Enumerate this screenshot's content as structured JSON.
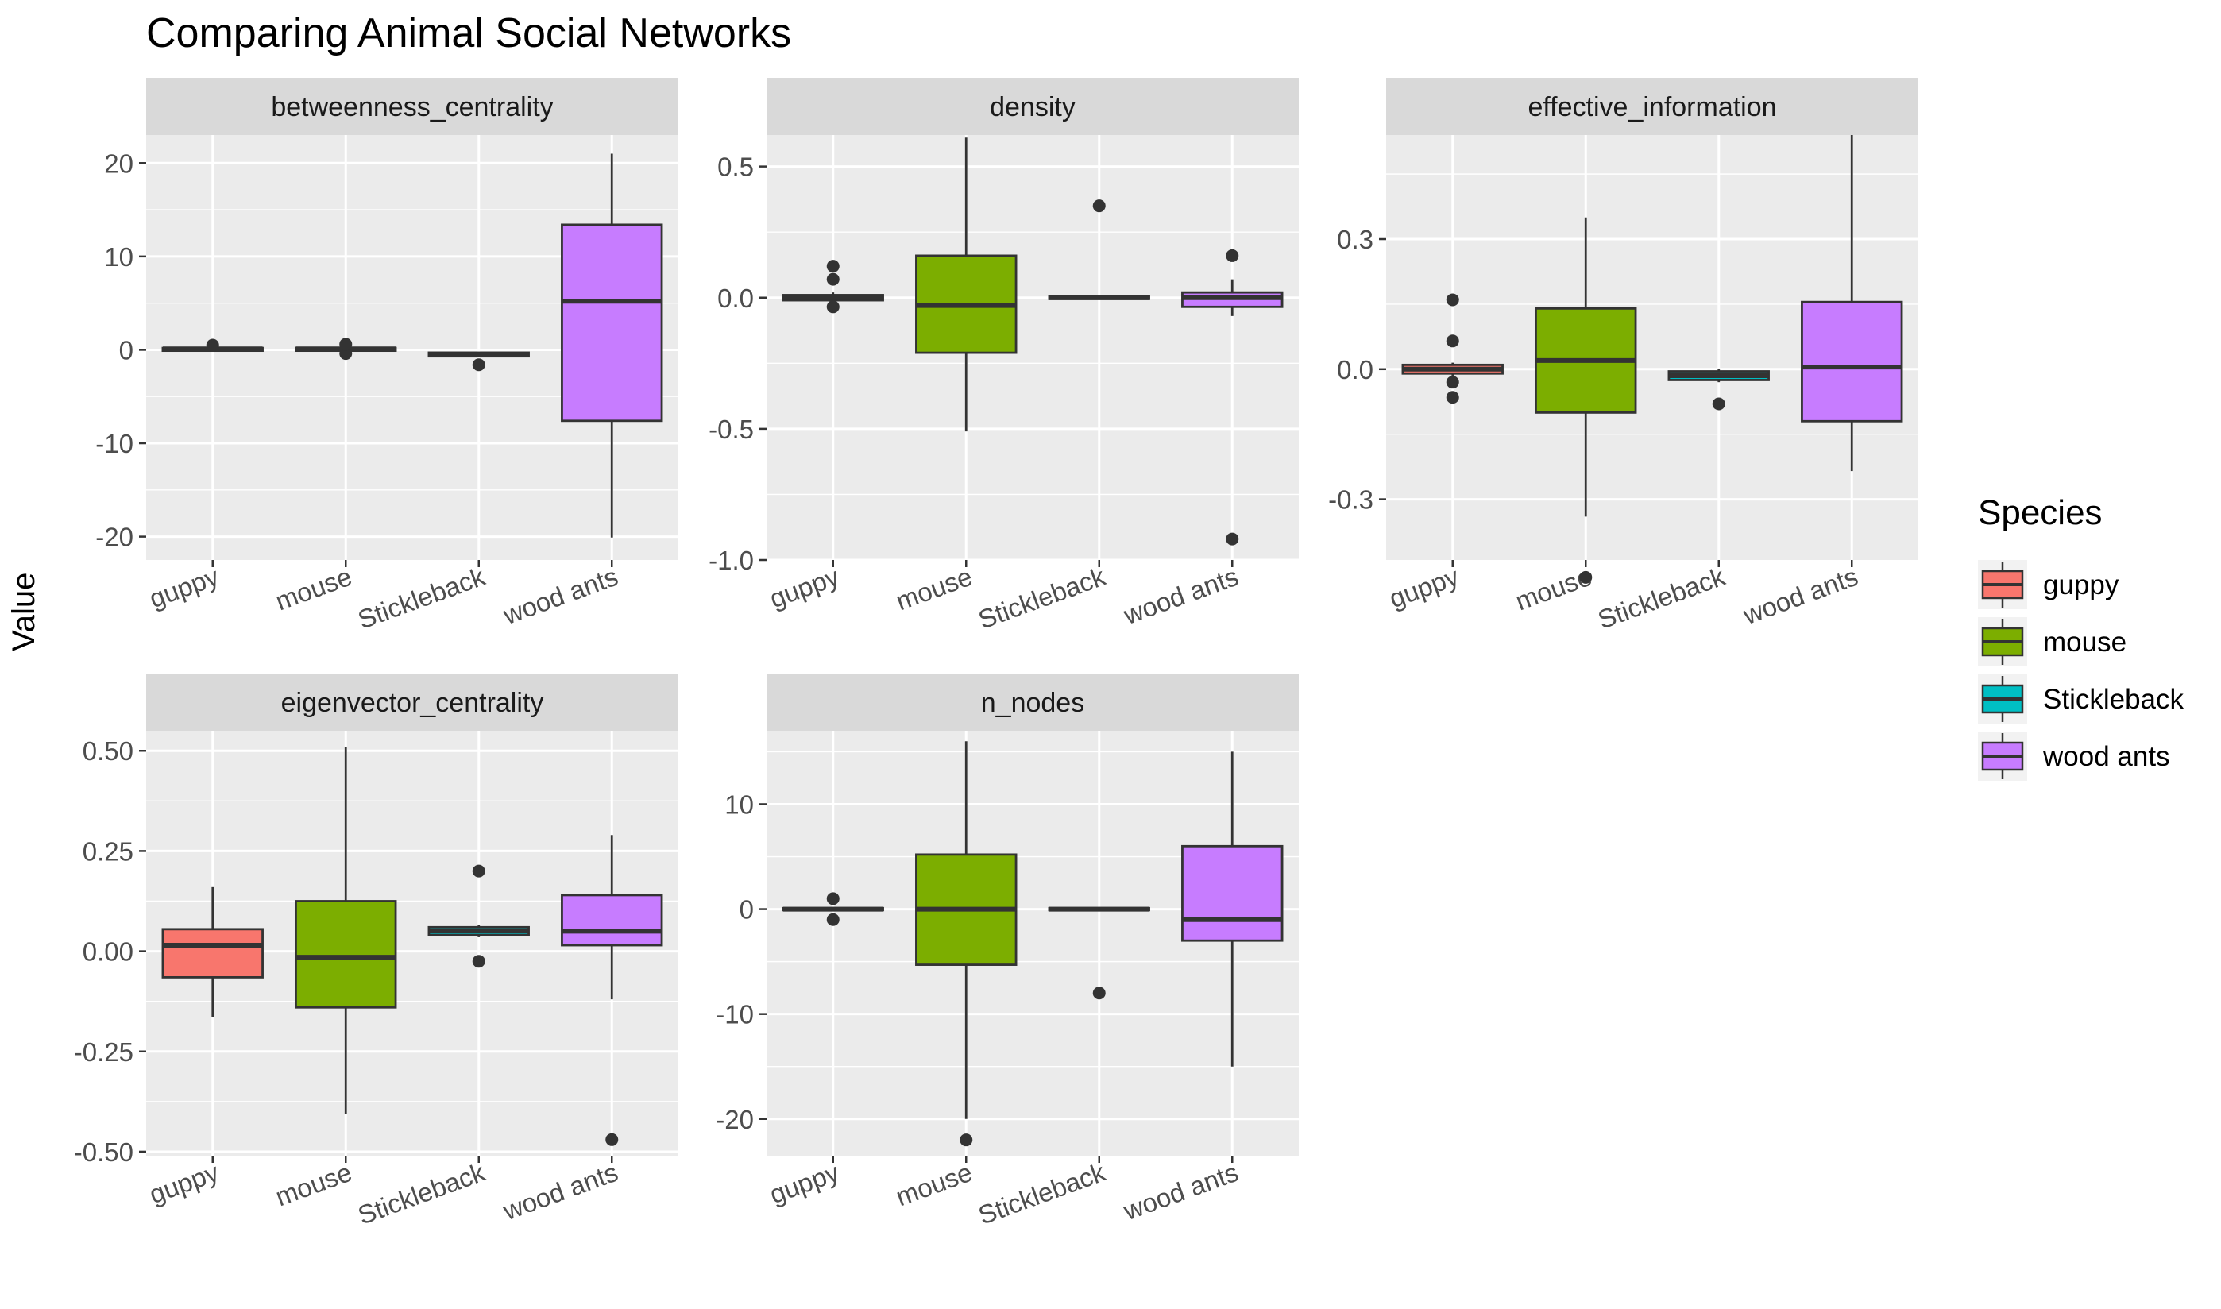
{
  "chart_data": {
    "type": "boxplot",
    "title": "Comparing Animal Social Networks",
    "ylabel": "Value",
    "categories": [
      "guppy",
      "mouse",
      "Stickleback",
      "wood ants"
    ],
    "legend": {
      "title": "Species",
      "position": "right",
      "entries": [
        {
          "label": "guppy",
          "color": "#F8766D"
        },
        {
          "label": "mouse",
          "color": "#7CAE00"
        },
        {
          "label": "Stickleback",
          "color": "#00BFC4"
        },
        {
          "label": "wood ants",
          "color": "#C77CFF"
        }
      ]
    },
    "grid": true,
    "facets": [
      {
        "name": "betweenness_centrality",
        "ylim": [
          -22.5,
          23
        ],
        "yticks": [
          -20,
          -10,
          0,
          10,
          20
        ],
        "yticklabels": [
          "-20",
          "-10",
          "0",
          "10",
          "20"
        ],
        "boxes": [
          {
            "species": "guppy",
            "q1": -0.1,
            "median": 0.1,
            "q3": 0.2,
            "whisker_low": -0.1,
            "whisker_high": 0.3,
            "outliers": [
              0.5
            ]
          },
          {
            "species": "mouse",
            "q1": -0.1,
            "median": 0.1,
            "q3": 0.2,
            "whisker_low": -0.1,
            "whisker_high": 0.2,
            "outliers": [
              -0.4,
              0.6
            ]
          },
          {
            "species": "Stickleback",
            "q1": -0.7,
            "median": -0.5,
            "q3": -0.3,
            "whisker_low": -0.8,
            "whisker_high": -0.3,
            "outliers": [
              -1.6
            ]
          },
          {
            "species": "wood ants",
            "q1": -7.6,
            "median": 5.2,
            "q3": 13.4,
            "whisker_low": -20.1,
            "whisker_high": 21.0,
            "outliers": []
          }
        ]
      },
      {
        "name": "density",
        "ylim": [
          -1.0,
          0.62
        ],
        "yticks": [
          -1.0,
          -0.5,
          0.0,
          0.5
        ],
        "yticklabels": [
          "-1.0",
          "-0.5",
          "0.0",
          "0.5"
        ],
        "boxes": [
          {
            "species": "guppy",
            "q1": -0.01,
            "median": 0.0,
            "q3": 0.01,
            "whisker_low": -0.02,
            "whisker_high": 0.02,
            "outliers": [
              -0.035,
              0.07,
              0.12
            ]
          },
          {
            "species": "mouse",
            "q1": -0.21,
            "median": -0.03,
            "q3": 0.16,
            "whisker_low": -0.51,
            "whisker_high": 0.61,
            "outliers": []
          },
          {
            "species": "Stickleback",
            "q1": -0.005,
            "median": 0.0,
            "q3": 0.005,
            "whisker_low": -0.005,
            "whisker_high": 0.005,
            "outliers": [
              0.35
            ]
          },
          {
            "species": "wood ants",
            "q1": -0.035,
            "median": 0.0,
            "q3": 0.02,
            "whisker_low": -0.07,
            "whisker_high": 0.07,
            "outliers": [
              -0.92,
              0.16
            ]
          }
        ]
      },
      {
        "name": "effective_information",
        "ylim": [
          -0.44,
          0.54
        ],
        "yticks": [
          -0.3,
          0.0,
          0.3
        ],
        "yticklabels": [
          "-0.3",
          "0.0",
          "0.3"
        ],
        "boxes": [
          {
            "species": "guppy",
            "q1": -0.01,
            "median": 0.0,
            "q3": 0.01,
            "whisker_low": -0.015,
            "whisker_high": 0.015,
            "outliers": [
              -0.065,
              -0.03,
              0.065,
              0.16
            ]
          },
          {
            "species": "mouse",
            "q1": -0.1,
            "median": 0.02,
            "q3": 0.14,
            "whisker_low": -0.34,
            "whisker_high": 0.35,
            "outliers": [
              -0.48
            ]
          },
          {
            "species": "Stickleback",
            "q1": -0.025,
            "median": -0.015,
            "q3": -0.005,
            "whisker_low": -0.03,
            "whisker_high": 0.0,
            "outliers": [
              -0.08
            ]
          },
          {
            "species": "wood ants",
            "q1": -0.12,
            "median": 0.005,
            "q3": 0.155,
            "whisker_low": -0.235,
            "whisker_high": 0.54,
            "outliers": []
          }
        ]
      },
      {
        "name": "eigenvector_centrality",
        "ylim": [
          -0.51,
          0.55
        ],
        "yticks": [
          -0.5,
          -0.25,
          0.0,
          0.25,
          0.5
        ],
        "yticklabels": [
          "-0.50",
          "-0.25",
          "0.00",
          "0.25",
          "0.50"
        ],
        "boxes": [
          {
            "species": "guppy",
            "q1": -0.065,
            "median": 0.015,
            "q3": 0.055,
            "whisker_low": -0.165,
            "whisker_high": 0.16,
            "outliers": []
          },
          {
            "species": "mouse",
            "q1": -0.14,
            "median": -0.015,
            "q3": 0.125,
            "whisker_low": -0.405,
            "whisker_high": 0.51,
            "outliers": []
          },
          {
            "species": "Stickleback",
            "q1": 0.04,
            "median": 0.05,
            "q3": 0.06,
            "whisker_low": 0.035,
            "whisker_high": 0.065,
            "outliers": [
              -0.025,
              0.2
            ]
          },
          {
            "species": "wood ants",
            "q1": 0.015,
            "median": 0.05,
            "q3": 0.14,
            "whisker_low": -0.12,
            "whisker_high": 0.29,
            "outliers": [
              -0.47
            ]
          }
        ]
      },
      {
        "name": "n_nodes",
        "ylim": [
          -23.5,
          17
        ],
        "yticks": [
          -20,
          -10,
          0,
          10
        ],
        "yticklabels": [
          "-20",
          "-10",
          "0",
          "10"
        ],
        "boxes": [
          {
            "species": "guppy",
            "q1": -0.1,
            "median": 0.0,
            "q3": 0.1,
            "whisker_low": -0.2,
            "whisker_high": 0.2,
            "outliers": [
              -1.0,
              1.0
            ]
          },
          {
            "species": "mouse",
            "q1": -5.3,
            "median": 0.0,
            "q3": 5.2,
            "whisker_low": -20.0,
            "whisker_high": 16.0,
            "outliers": [
              -22.0
            ]
          },
          {
            "species": "Stickleback",
            "q1": -0.1,
            "median": 0.0,
            "q3": 0.1,
            "whisker_low": -0.1,
            "whisker_high": 0.1,
            "outliers": [
              -8.0
            ]
          },
          {
            "species": "wood ants",
            "q1": -3.0,
            "median": -1.0,
            "q3": 6.0,
            "whisker_low": -15.0,
            "whisker_high": 15.0,
            "outliers": []
          }
        ]
      }
    ]
  }
}
